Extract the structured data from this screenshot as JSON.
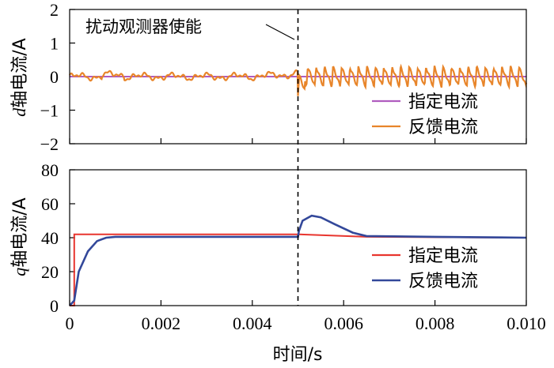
{
  "chart_data": [
    {
      "type": "line",
      "ylabel_var": "d",
      "ylabel_rest": "轴电流/A",
      "ylim": [
        -2,
        2
      ],
      "yticks": [
        "2",
        "1",
        "0",
        "−1",
        "−2"
      ],
      "ytick_values": [
        2,
        1,
        0,
        -1,
        -2
      ],
      "xlim": [
        0,
        0.01
      ],
      "annotation": "扰动观测器使能",
      "annotation_x": 0.005,
      "colors": {
        "reference": "#b05cbf",
        "feedback": "#e8852a"
      },
      "series": [
        {
          "name": "指定电流",
          "values_const": 0
        },
        {
          "name": "反馈电流",
          "before_enable": "small ripple around 0 (±0.15)",
          "after_enable": "sawtooth oscillation around 0, amplitude about ±0.3"
        }
      ]
    },
    {
      "type": "line",
      "ylabel_var": "q",
      "ylabel_rest": "轴电流/A",
      "ylim": [
        0,
        80
      ],
      "yticks": [
        "80",
        "60",
        "40",
        "20",
        "0"
      ],
      "ytick_values": [
        80,
        60,
        40,
        20,
        0
      ],
      "xlim": [
        0,
        0.01
      ],
      "xticks": [
        "0",
        "0.002",
        "0.004",
        "0.006",
        "0.008",
        "0.010"
      ],
      "xtick_values": [
        0,
        0.002,
        0.004,
        0.006,
        0.008,
        0.01
      ],
      "xlabel": "时间/s",
      "colors": {
        "reference": "#e8352e",
        "feedback": "#33489a"
      },
      "series": [
        {
          "name": "指定电流",
          "x": [
            0,
            0.0001,
            0.0001,
            0.005,
            0.0065,
            0.01
          ],
          "y": [
            0,
            0,
            42,
            42,
            40.5,
            40
          ]
        },
        {
          "name": "反馈电流",
          "x": [
            0,
            0.0001,
            0.0002,
            0.0004,
            0.0006,
            0.0008,
            0.001,
            0.002,
            0.004,
            0.005,
            0.00502,
            0.0051,
            0.0053,
            0.0055,
            0.0058,
            0.0062,
            0.0065,
            0.008,
            0.01
          ],
          "y": [
            0,
            3,
            20,
            32,
            38,
            40,
            40.5,
            40.5,
            40.5,
            40.5,
            44,
            50,
            53,
            52,
            48,
            43,
            41,
            40.5,
            40
          ]
        }
      ]
    }
  ]
}
